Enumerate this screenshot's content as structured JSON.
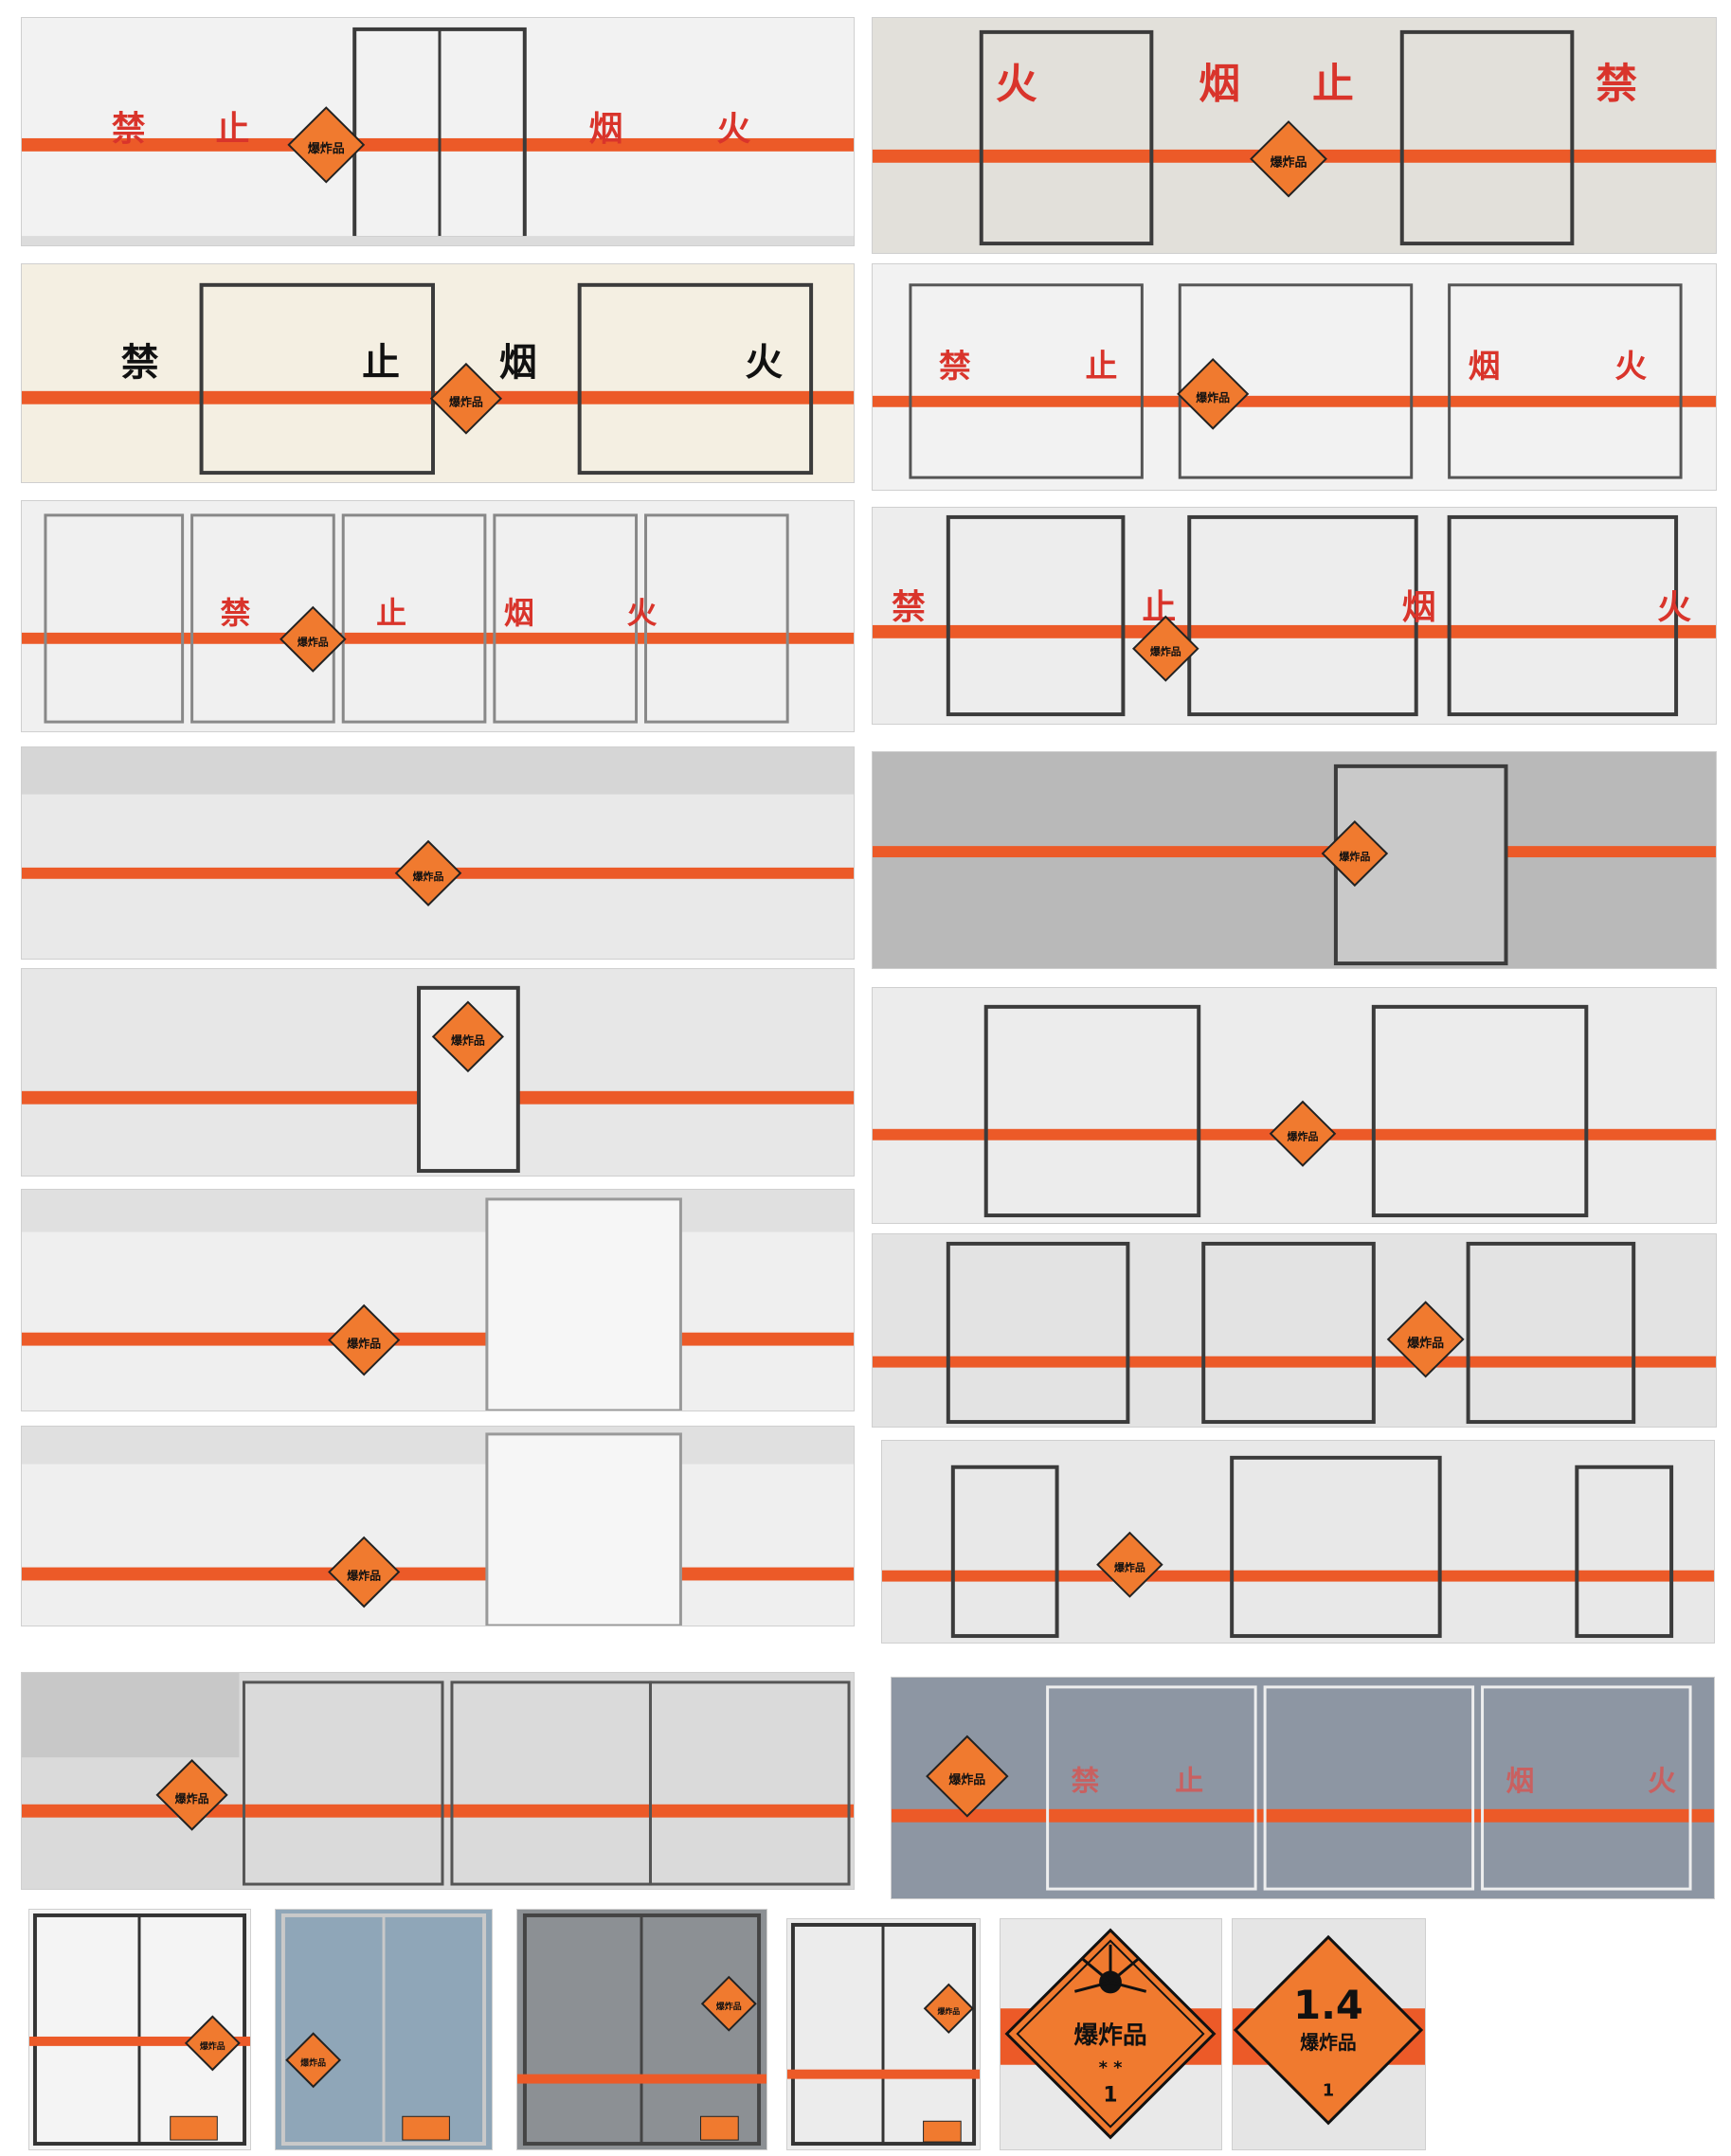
{
  "colors": {
    "stripe": "#ec5a28",
    "sign": "#f07a2f",
    "chinese_red": "#d9342b",
    "door_frame": "#3b3b3b"
  },
  "warning_chars": [
    "禁",
    "止",
    "烟",
    "火"
  ],
  "sign": {
    "label": "爆炸品",
    "class_number": "1",
    "division_label": "1.4"
  },
  "icons": [
    "explosive-diamond-icon",
    "division-1-4-diamond-icon"
  ]
}
